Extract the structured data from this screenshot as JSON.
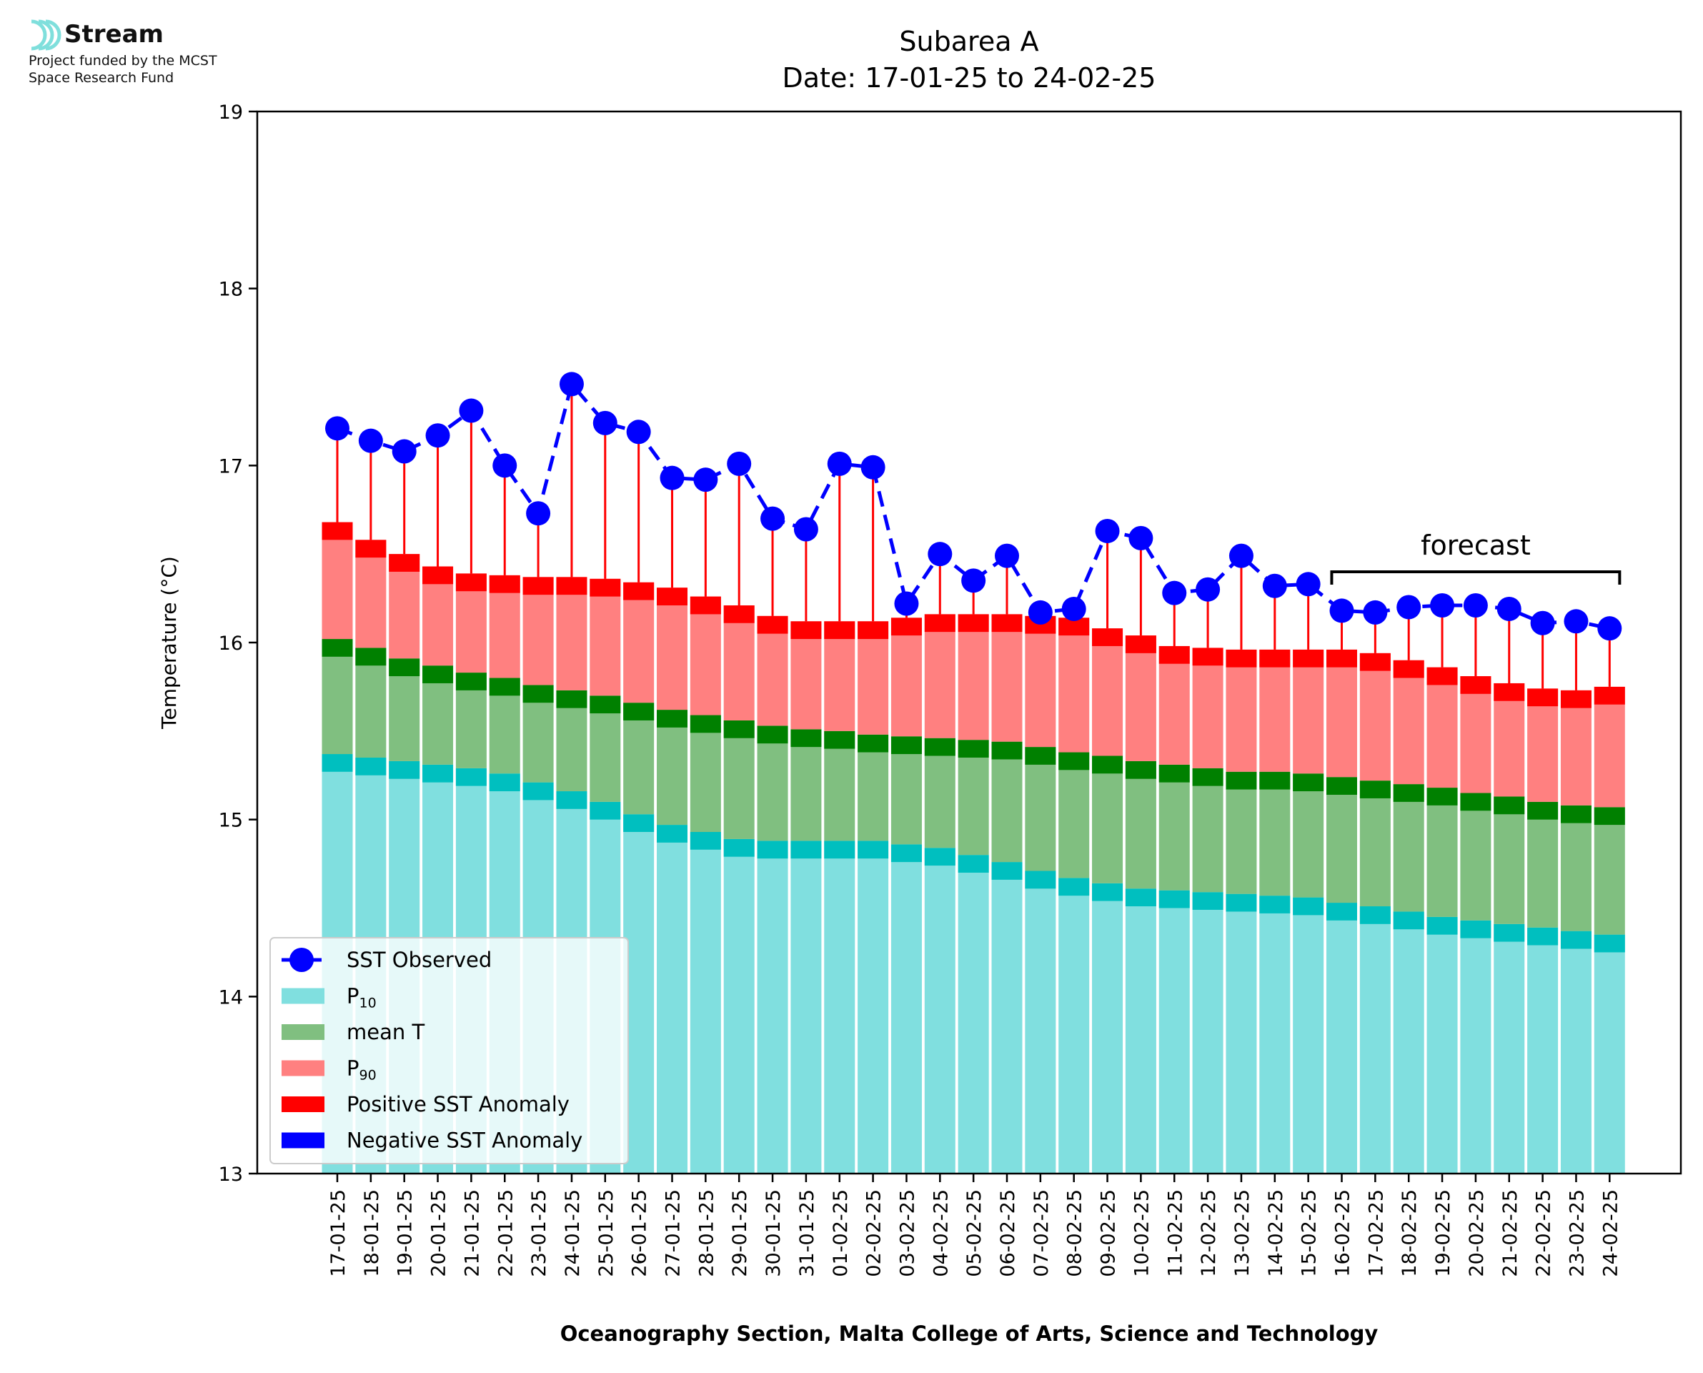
{
  "logo": {
    "name": "Stream",
    "line1": "Project funded by the MCST",
    "line2": "Space Research Fund",
    "color": "#7fdfdc"
  },
  "chart_data": {
    "type": "bar",
    "title": "Subarea A",
    "subtitle": "Date: 17-01-25 to 24-02-25",
    "xlabel": "Oceanography Section, Malta College of Arts, Science and Technology",
    "ylabel": "Temperature (°C)",
    "ylim": [
      13,
      19
    ],
    "yticks": [
      13,
      14,
      15,
      16,
      17,
      18,
      19
    ],
    "grid": false,
    "legend_position": "lower-left",
    "categories": [
      "17-01-25",
      "18-01-25",
      "19-01-25",
      "20-01-25",
      "21-01-25",
      "22-01-25",
      "23-01-25",
      "24-01-25",
      "25-01-25",
      "26-01-25",
      "27-01-25",
      "28-01-25",
      "29-01-25",
      "30-01-25",
      "31-01-25",
      "01-02-25",
      "02-02-25",
      "03-02-25",
      "04-02-25",
      "05-02-25",
      "06-02-25",
      "07-02-25",
      "08-02-25",
      "09-02-25",
      "10-02-25",
      "11-02-25",
      "12-02-25",
      "13-02-25",
      "14-02-25",
      "15-02-25",
      "16-02-25",
      "17-02-25",
      "18-02-25",
      "19-02-25",
      "20-02-25",
      "21-02-25",
      "22-02-25",
      "23-02-25",
      "24-02-25"
    ],
    "p10": [
      15.37,
      15.35,
      15.33,
      15.31,
      15.29,
      15.26,
      15.21,
      15.16,
      15.1,
      15.03,
      14.97,
      14.93,
      14.89,
      14.88,
      14.88,
      14.88,
      14.88,
      14.86,
      14.84,
      14.8,
      14.76,
      14.71,
      14.67,
      14.64,
      14.61,
      14.6,
      14.59,
      14.58,
      14.57,
      14.56,
      14.53,
      14.51,
      14.48,
      14.45,
      14.43,
      14.41,
      14.39,
      14.37,
      14.35
    ],
    "mean_t": [
      16.02,
      15.97,
      15.91,
      15.87,
      15.83,
      15.8,
      15.76,
      15.73,
      15.7,
      15.66,
      15.62,
      15.59,
      15.56,
      15.53,
      15.51,
      15.5,
      15.48,
      15.47,
      15.46,
      15.45,
      15.44,
      15.41,
      15.38,
      15.36,
      15.33,
      15.31,
      15.29,
      15.27,
      15.27,
      15.26,
      15.24,
      15.22,
      15.2,
      15.18,
      15.15,
      15.13,
      15.1,
      15.08,
      15.07
    ],
    "p90": [
      16.68,
      16.58,
      16.5,
      16.43,
      16.39,
      16.38,
      16.37,
      16.37,
      16.36,
      16.34,
      16.31,
      16.26,
      16.21,
      16.15,
      16.12,
      16.12,
      16.12,
      16.14,
      16.16,
      16.16,
      16.16,
      16.15,
      16.14,
      16.08,
      16.04,
      15.98,
      15.97,
      15.96,
      15.96,
      15.96,
      15.96,
      15.94,
      15.9,
      15.86,
      15.81,
      15.77,
      15.74,
      15.73,
      15.75
    ],
    "sst_observed": [
      17.21,
      17.14,
      17.08,
      17.17,
      17.31,
      17.0,
      16.73,
      17.46,
      17.24,
      17.19,
      16.93,
      16.92,
      17.01,
      16.7,
      16.64,
      17.01,
      16.99,
      16.22,
      16.5,
      16.35,
      16.49,
      16.17,
      16.19,
      16.63,
      16.59,
      16.28,
      16.3,
      16.49,
      16.32,
      16.33,
      16.18,
      16.17,
      16.2,
      16.21,
      16.21,
      16.19,
      16.11,
      16.12,
      16.08
    ],
    "forecast": {
      "label": "forecast",
      "start": "16-02-25",
      "end": "24-02-25"
    },
    "series": [
      {
        "name": "SST Observed",
        "color": "#0000ff",
        "style": "dashed-line-circles"
      },
      {
        "name": "P",
        "sub": "10",
        "color": "#80dfdf"
      },
      {
        "name": "mean T",
        "color": "#80bf80"
      },
      {
        "name": "P",
        "sub": "90",
        "color": "#ff8080"
      },
      {
        "name": "Positive SST Anomaly",
        "color": "#ff0000"
      },
      {
        "name": "Negative SST Anomaly",
        "color": "#0000ff"
      }
    ],
    "colors": {
      "p10_band": "#00bfbf",
      "mean_band": "#008000",
      "p90_band": "#ff0000"
    }
  }
}
